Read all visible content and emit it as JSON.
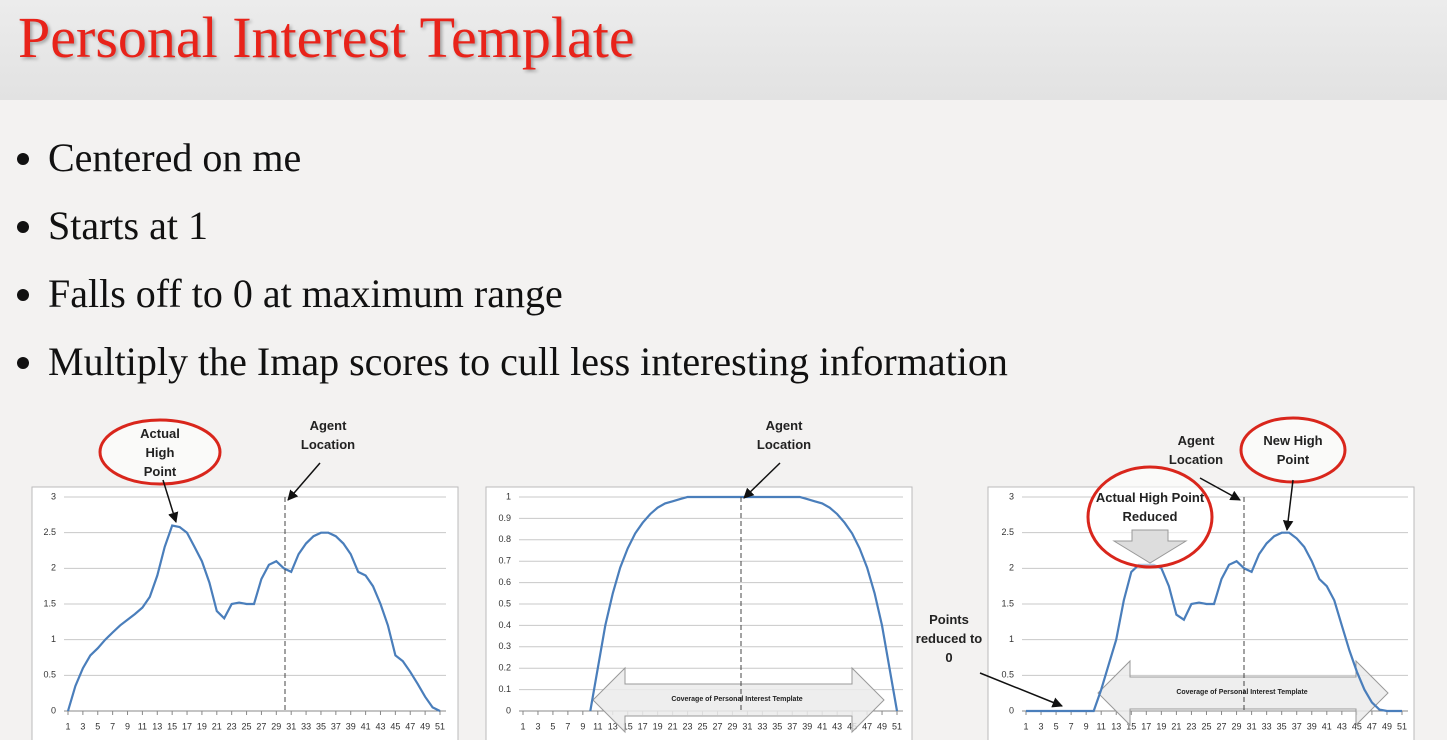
{
  "slide": {
    "title": "Personal Interest Template",
    "bullets": [
      "Centered on me",
      "Starts at 1",
      "Falls off to 0 at maximum range",
      "Multiply the Imap scores to cull less interesting information"
    ]
  },
  "chart_data": [
    {
      "type": "line",
      "color": "#4a7ebb",
      "grid": true,
      "x": [
        1,
        2,
        3,
        4,
        5,
        6,
        7,
        8,
        9,
        10,
        11,
        12,
        13,
        14,
        15,
        16,
        17,
        18,
        19,
        20,
        21,
        22,
        23,
        24,
        25,
        26,
        27,
        28,
        29,
        30,
        31,
        32,
        33,
        34,
        35,
        36,
        37,
        38,
        39,
        40,
        41,
        42,
        43,
        44,
        45,
        46,
        47,
        48,
        49,
        50,
        51
      ],
      "values": [
        0,
        0.35,
        0.6,
        0.78,
        0.88,
        1.0,
        1.1,
        1.2,
        1.28,
        1.36,
        1.45,
        1.6,
        1.9,
        2.3,
        2.6,
        2.58,
        2.5,
        2.3,
        2.1,
        1.8,
        1.4,
        1.3,
        1.5,
        1.52,
        1.5,
        1.5,
        1.85,
        2.05,
        2.1,
        2.0,
        1.95,
        2.2,
        2.35,
        2.45,
        2.5,
        2.5,
        2.45,
        2.35,
        2.2,
        1.95,
        1.9,
        1.75,
        1.5,
        1.2,
        0.78,
        0.7,
        0.55,
        0.38,
        0.2,
        0.05,
        0
      ],
      "xlim": [
        1,
        51
      ],
      "xticks": [
        1,
        3,
        5,
        7,
        9,
        11,
        13,
        15,
        17,
        19,
        21,
        23,
        25,
        27,
        29,
        31,
        33,
        35,
        37,
        39,
        41,
        43,
        45,
        47,
        49,
        51
      ],
      "ylim": [
        0,
        3
      ],
      "yticks": [
        0,
        0.5,
        1,
        1.5,
        2,
        2.5,
        3
      ],
      "annotations": [
        "Actual High Point",
        "Agent Location"
      ]
    },
    {
      "type": "line",
      "color": "#4a7ebb",
      "grid": true,
      "x": [
        1,
        2,
        3,
        4,
        5,
        6,
        7,
        8,
        9,
        10,
        11,
        12,
        13,
        14,
        15,
        16,
        17,
        18,
        19,
        20,
        21,
        22,
        23,
        24,
        25,
        26,
        27,
        28,
        29,
        30,
        31,
        32,
        33,
        34,
        35,
        36,
        37,
        38,
        39,
        40,
        41,
        42,
        43,
        44,
        45,
        46,
        47,
        48,
        49,
        50,
        51
      ],
      "values": [
        null,
        null,
        null,
        null,
        null,
        null,
        null,
        null,
        null,
        0,
        0.2,
        0.4,
        0.55,
        0.67,
        0.76,
        0.83,
        0.88,
        0.92,
        0.95,
        0.97,
        0.98,
        0.99,
        1,
        1,
        1,
        1,
        1,
        1,
        1,
        1,
        1,
        1,
        1,
        1,
        1,
        1,
        1,
        1,
        0.99,
        0.98,
        0.97,
        0.95,
        0.92,
        0.88,
        0.83,
        0.76,
        0.67,
        0.55,
        0.4,
        0.2,
        0
      ],
      "xlim": [
        1,
        51
      ],
      "xticks": [
        1,
        3,
        5,
        7,
        9,
        11,
        13,
        15,
        17,
        19,
        21,
        23,
        25,
        27,
        29,
        31,
        33,
        35,
        37,
        39,
        41,
        43,
        45,
        47,
        49,
        51
      ],
      "ylim": [
        0,
        1
      ],
      "yticks": [
        0,
        0.1,
        0.2,
        0.3,
        0.4,
        0.5,
        0.6,
        0.7,
        0.8,
        0.9,
        1
      ],
      "annotations": [
        "Agent Location",
        "Coverage of Personal Interest Template"
      ]
    },
    {
      "type": "line",
      "color": "#4a7ebb",
      "grid": true,
      "x": [
        1,
        2,
        3,
        4,
        5,
        6,
        7,
        8,
        9,
        10,
        11,
        12,
        13,
        14,
        15,
        16,
        17,
        18,
        19,
        20,
        21,
        22,
        23,
        24,
        25,
        26,
        27,
        28,
        29,
        30,
        31,
        32,
        33,
        34,
        35,
        36,
        37,
        38,
        39,
        40,
        41,
        42,
        43,
        44,
        45,
        46,
        47,
        48,
        49,
        50,
        51
      ],
      "values": [
        0,
        0,
        0,
        0,
        0,
        0,
        0,
        0,
        0,
        0,
        0.3,
        0.65,
        1.0,
        1.55,
        1.95,
        2.05,
        2.05,
        2.05,
        2.0,
        1.75,
        1.35,
        1.28,
        1.5,
        1.52,
        1.5,
        1.5,
        1.85,
        2.05,
        2.1,
        2.0,
        1.95,
        2.2,
        2.35,
        2.45,
        2.5,
        2.5,
        2.42,
        2.3,
        2.1,
        1.85,
        1.75,
        1.55,
        1.2,
        0.85,
        0.55,
        0.3,
        0.12,
        0.02,
        0,
        0,
        0
      ],
      "xlim": [
        1,
        51
      ],
      "xticks": [
        1,
        3,
        5,
        7,
        9,
        11,
        13,
        15,
        17,
        19,
        21,
        23,
        25,
        27,
        29,
        31,
        33,
        35,
        37,
        39,
        41,
        43,
        45,
        47,
        49,
        51
      ],
      "ylim": [
        0,
        3
      ],
      "yticks": [
        0,
        0.5,
        1,
        1.5,
        2,
        2.5,
        3
      ],
      "annotations": [
        "Agent Location",
        "New High Point",
        "Actual High Point Reduced",
        "Points reduced to 0",
        "Coverage of Personal Interest Template"
      ]
    }
  ]
}
